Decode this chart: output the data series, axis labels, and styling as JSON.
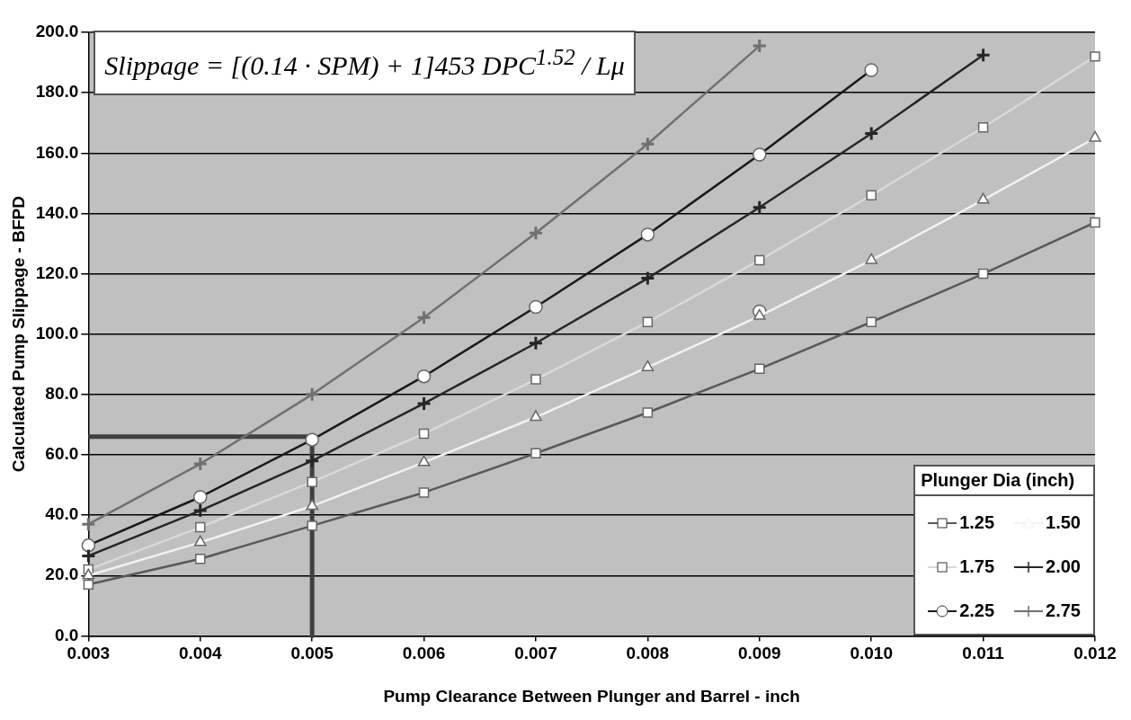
{
  "chart_data": {
    "type": "line",
    "xlabel": "Pump Clearance Between Plunger and Barrel - inch",
    "ylabel": "Calculated Pump Slippage - BFPD",
    "legend_title": "Plunger Dia (inch)",
    "legend": "bottom right",
    "grid": "y",
    "annotations": [
      "Slippage = [(0.14 · SPM) + 1]453 DPC$^{1.52}$ / Lμ"
    ],
    "x": [
      0.003,
      0.004,
      0.005,
      0.006,
      0.007,
      0.008,
      0.009,
      0.01,
      0.011,
      0.012
    ],
    "xlim": [
      0.003,
      0.012
    ],
    "xticks": [
      0.003,
      0.004,
      0.005,
      0.006,
      0.007,
      0.008,
      0.009,
      {
        "value": 0.01,
        "label": "0.010"
      },
      0.011,
      0.012
    ],
    "ylim": [
      0,
      200
    ],
    "yticks": [
      {
        "value": 0,
        "label": "0.0"
      },
      {
        "value": 20,
        "label": "20.0"
      },
      {
        "value": 40,
        "label": "40.0"
      },
      {
        "value": 60,
        "label": "60.0"
      },
      {
        "value": 80,
        "label": "80.0"
      },
      {
        "value": 100,
        "label": "100.0"
      },
      {
        "value": 120,
        "label": "120.0"
      },
      {
        "value": 140,
        "label": "140.0"
      },
      {
        "value": 160,
        "label": "160.0"
      },
      {
        "value": 180,
        "label": "180.0"
      },
      {
        "value": 200,
        "label": "200.0"
      }
    ],
    "series": [
      {
        "name": "1.25",
        "color": "#595959",
        "marker": "square",
        "values": [
          17,
          25.5,
          36.5,
          47.5,
          60.5,
          74,
          88.5,
          104,
          120,
          137
        ]
      },
      {
        "name": "1.50",
        "color": "#f2f2f2",
        "marker": "triangle",
        "values": [
          20,
          31,
          43,
          57.5,
          72.5,
          89,
          106,
          124.5,
          144.5,
          165
        ]
      },
      {
        "name": "1.75",
        "color": "#d9d9d9",
        "marker": "square",
        "values": [
          22,
          36,
          51,
          67,
          85,
          104,
          124.5,
          146,
          168.5,
          192
        ]
      },
      {
        "name": "2.00",
        "color": "#262626",
        "marker": "cross",
        "values": [
          26.5,
          41.5,
          58,
          77,
          97,
          118.5,
          142,
          166.5,
          192.5,
          null
        ]
      },
      {
        "name": "2.25",
        "color": "#1a1a1a",
        "marker": "circle",
        "values": [
          30,
          46,
          65,
          86,
          109,
          133,
          159.5,
          187.5,
          null,
          null
        ]
      },
      {
        "name": "2.75",
        "color": "#707070",
        "marker": "cross",
        "values": [
          37,
          57,
          80,
          105.5,
          133.5,
          163,
          195.5,
          null,
          null,
          null
        ]
      },
      {
        "type": "scatter",
        "color": "#ffffff",
        "marker": "circle",
        "x": [
          0.009
        ],
        "values": [
          107.5
        ]
      },
      {
        "type": "line",
        "color": "#404040",
        "marker": "none",
        "x": [
          0.003,
          0.005,
          0.005
        ],
        "values": [
          66,
          66,
          0
        ]
      }
    ]
  }
}
